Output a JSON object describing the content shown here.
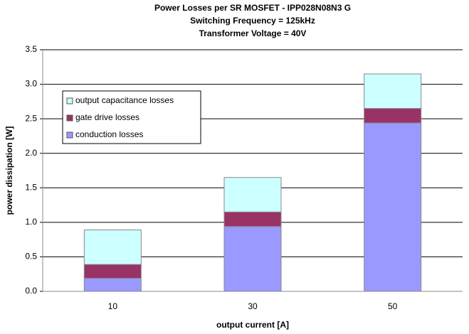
{
  "chart_data": {
    "type": "stacked_bar",
    "title": [
      "Power Losses per SR MOSFET - IPP028N08N3 G",
      "Switching Frequency  = 125kHz",
      "Transformer Voltage = 40V"
    ],
    "x_label": "output current [A]",
    "y_label": "power dissipation [W]",
    "categories": [
      "10",
      "30",
      "50"
    ],
    "series": [
      {
        "name": "conduction losses",
        "color": "#9999ff",
        "values": [
          0.19,
          0.94,
          2.44
        ]
      },
      {
        "name": "gate drive losses",
        "color": "#993366",
        "values": [
          0.2,
          0.21,
          0.21
        ]
      },
      {
        "name": "output capacitance losses",
        "color": "#ccffff",
        "values": [
          0.5,
          0.5,
          0.5
        ]
      }
    ],
    "ylim": [
      0,
      3.5
    ],
    "yticks": [
      {
        "value": 0,
        "label": "0.0"
      },
      {
        "value": 0.5,
        "label": "0.5"
      },
      {
        "value": 1,
        "label": "1.0"
      },
      {
        "value": 1.5,
        "label": "1.5"
      },
      {
        "value": 2,
        "label": "2.0"
      },
      {
        "value": 2.5,
        "label": "2.5"
      },
      {
        "value": 3,
        "label": "3.0"
      },
      {
        "value": 3.5,
        "label": "3.5"
      }
    ],
    "grid": true,
    "legend": "upper-left"
  }
}
